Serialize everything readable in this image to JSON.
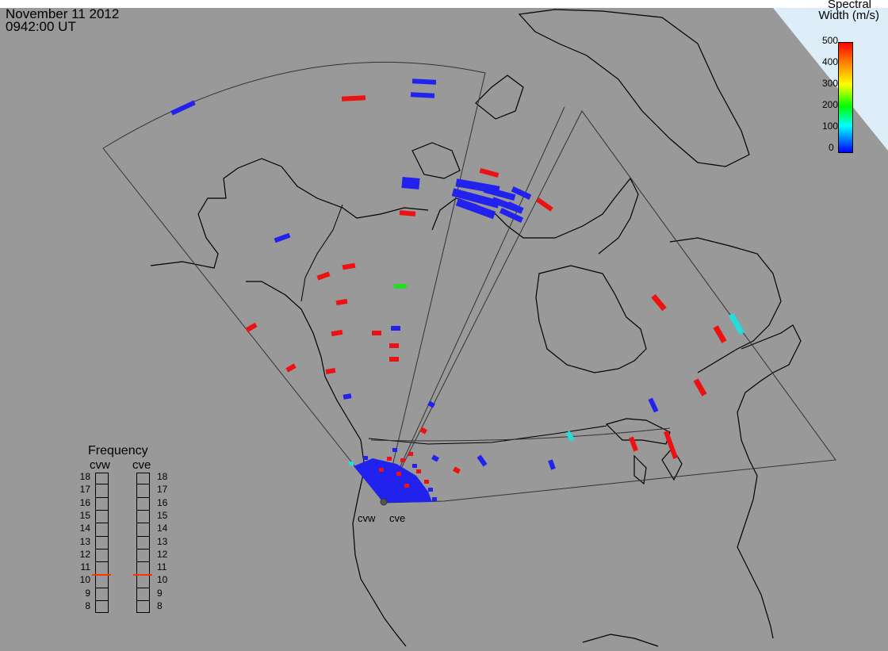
{
  "header": {
    "date": "November 11 2012",
    "time": "0942:00 UT"
  },
  "colorbar": {
    "title_line1": "Spectral",
    "title_line2": "Width (m/s)",
    "ticks": [
      "500",
      "400",
      "300",
      "200",
      "100",
      "0"
    ],
    "colors": [
      "#ff0000",
      "#ff7f00",
      "#ffff00",
      "#00ff00",
      "#00ffff",
      "#0000ff"
    ]
  },
  "stations": {
    "west": "cvw",
    "east": "cve"
  },
  "frequency": {
    "title": "Frequency",
    "cvw_label": "cvw",
    "cve_label": "cve",
    "scale": [
      "18",
      "17",
      "16",
      "15",
      "14",
      "13",
      "12",
      "11",
      "10",
      "9",
      "8"
    ],
    "cvw_value": 10.5,
    "cve_value": 10.5,
    "marker_color": "#ff3300"
  },
  "colors": {
    "background": "#999999",
    "coast": "#000000",
    "fov": "#333333",
    "low": "#2222ee",
    "high": "#ee1111",
    "mid": "#22dd22",
    "cyan": "#22dddd"
  }
}
